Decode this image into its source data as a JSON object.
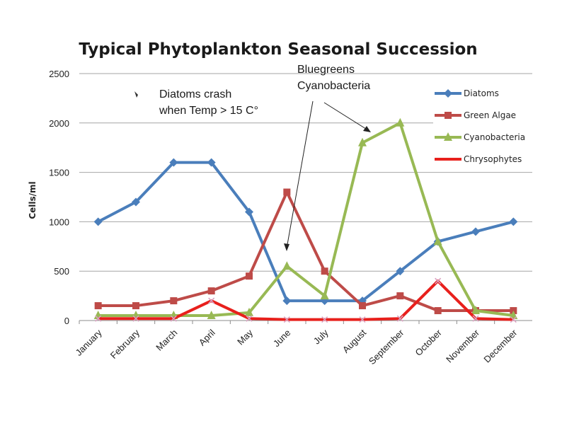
{
  "chart_data": {
    "type": "line",
    "title": "Typical Phytoplankton  Seasonal Succession",
    "ylabel": "Cells/ml",
    "xlabel": "",
    "ylim": [
      0,
      2500
    ],
    "yticks": [
      "0",
      "500",
      "1000",
      "1500",
      "2000",
      "2500"
    ],
    "grid": "horizontal",
    "legend_position": "right",
    "categories": [
      "January",
      "February",
      "March",
      "April",
      "May",
      "June",
      "July",
      "August",
      "September",
      "October",
      "November",
      "December"
    ],
    "series": [
      {
        "name": "Diatoms",
        "color": "#4A7EBB",
        "marker": "diamond",
        "values": [
          1000,
          1200,
          1600,
          1600,
          1100,
          200,
          200,
          200,
          500,
          800,
          900,
          1000
        ]
      },
      {
        "name": "Green Algae",
        "color": "#BE4B48",
        "marker": "square",
        "values": [
          150,
          150,
          200,
          300,
          450,
          1300,
          500,
          150,
          250,
          100,
          100,
          100
        ]
      },
      {
        "name": "Cyanobacteria",
        "color": "#98B954",
        "marker": "triangle",
        "values": [
          50,
          50,
          50,
          50,
          80,
          550,
          250,
          1800,
          2000,
          800,
          100,
          50
        ]
      },
      {
        "name": "Chrysophytes",
        "color": "#E8201C",
        "marker": "x",
        "values": [
          20,
          20,
          20,
          200,
          20,
          10,
          10,
          10,
          20,
          400,
          20,
          10
        ]
      }
    ],
    "annotations": [
      {
        "text_lines": [
          "Diatoms crash",
          "when Temp > 15 C°"
        ]
      },
      {
        "text_lines": [
          "Bluegreens",
          "Cyanobacteria"
        ]
      }
    ]
  }
}
